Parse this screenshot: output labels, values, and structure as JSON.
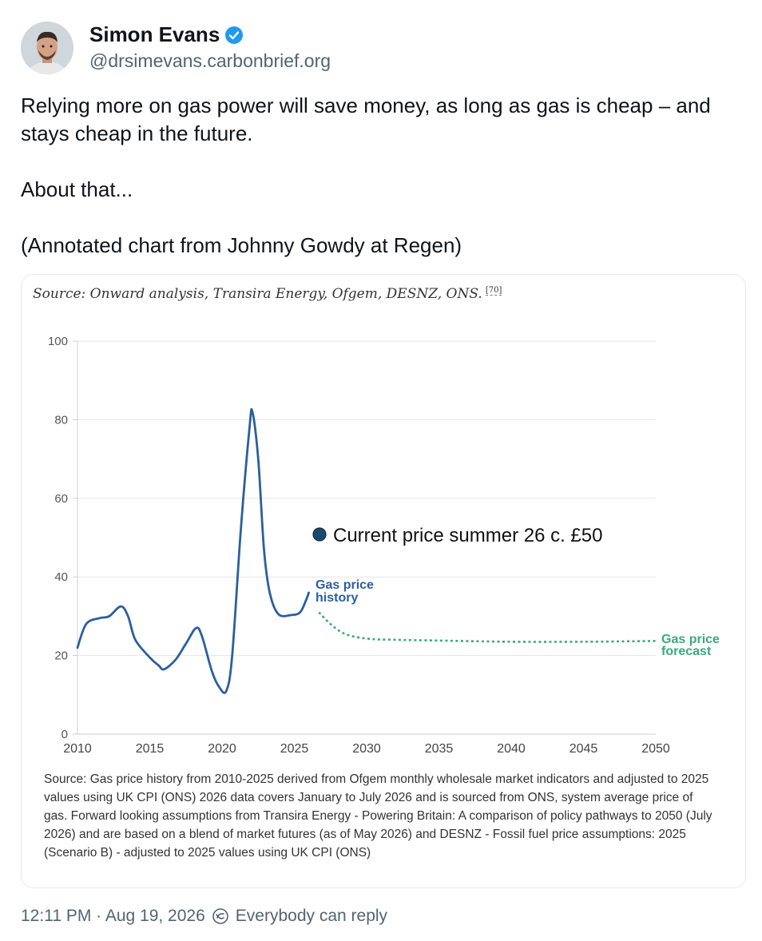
{
  "author": {
    "name": "Simon Evans",
    "handle": "@drsimevans.carbonbrief.org",
    "verified": true
  },
  "post": {
    "paragraphs": [
      "Relying more on gas power will save money, as long as gas is cheap – and stays cheap in the future.",
      "About that...",
      "(Annotated chart from Johnny Gowdy at Regen)"
    ]
  },
  "card": {
    "source_top": "Source: Onward analysis, Transira Energy, Ofgem, DESNZ, ONS.",
    "footnote_ref": "[70]",
    "caption": "Source: Gas price history from 2010-2025 derived from Ofgem monthly wholesale market indicators and adjusted to 2025 values using UK CPI (ONS) 2026 data covers January to July 2026 and is sourced from ONS, system average price of gas. Forward looking assumptions from Transira Energy - Powering Britain: A comparison of policy pathways to 2050 (July 2026) and are based on a blend of market futures (as of May 2026) and DESNZ - Fossil fuel price assumptions: 2025 (Scenario B) - adjusted to 2025 values using UK CPI (ONS)"
  },
  "chart_data": {
    "type": "line",
    "title": "",
    "xlabel": "",
    "ylabel": "",
    "xlim": [
      2010,
      2050
    ],
    "ylim": [
      0,
      100
    ],
    "x_ticks": [
      "2010",
      "2015",
      "2020",
      "2025",
      "2030",
      "2035",
      "2040",
      "2045",
      "2050"
    ],
    "y_ticks": [
      "0",
      "20",
      "40",
      "60",
      "80",
      "100"
    ],
    "grid": true,
    "series": [
      {
        "name": "Gas price history",
        "color": "#2b5fa0",
        "style": "solid",
        "points": [
          [
            2010,
            22
          ],
          [
            2010.6,
            28
          ],
          [
            2011.5,
            29.5
          ],
          [
            2012.2,
            30
          ],
          [
            2013,
            32.5
          ],
          [
            2013.5,
            30
          ],
          [
            2014,
            24
          ],
          [
            2015,
            19.5
          ],
          [
            2015.6,
            17.5
          ],
          [
            2016,
            16.5
          ],
          [
            2016.8,
            19
          ],
          [
            2017.5,
            23
          ],
          [
            2018.2,
            27
          ],
          [
            2018.6,
            25
          ],
          [
            2019.3,
            16
          ],
          [
            2019.8,
            12
          ],
          [
            2020.3,
            11
          ],
          [
            2020.7,
            20
          ],
          [
            2021.3,
            52
          ],
          [
            2021.9,
            78
          ],
          [
            2022.1,
            82
          ],
          [
            2022.5,
            70
          ],
          [
            2022.9,
            47
          ],
          [
            2023.3,
            36
          ],
          [
            2023.9,
            30.5
          ],
          [
            2024.8,
            30.3
          ],
          [
            2025.4,
            31
          ],
          [
            2025.8,
            34
          ],
          [
            2026,
            36
          ]
        ]
      },
      {
        "name": "Gas price forecast",
        "color": "#3aaa7c",
        "style": "dashed",
        "points": [
          [
            2026.7,
            31
          ],
          [
            2027.5,
            28
          ],
          [
            2028.5,
            25.5
          ],
          [
            2030,
            24.3
          ],
          [
            2032,
            24
          ],
          [
            2035,
            23.8
          ],
          [
            2040,
            23.5
          ],
          [
            2045,
            23.5
          ],
          [
            2050,
            23.7
          ]
        ]
      }
    ],
    "annotations": {
      "current_price": "Current price summer 26 c. £50",
      "history_label": [
        "Gas price",
        "history"
      ],
      "forecast_label": [
        "Gas price",
        "forecast"
      ],
      "marker_color": "#1d4a6b"
    }
  },
  "footer": {
    "time": "12:11 PM · Aug 19, 2026",
    "reply_setting": "Everybody can reply"
  }
}
